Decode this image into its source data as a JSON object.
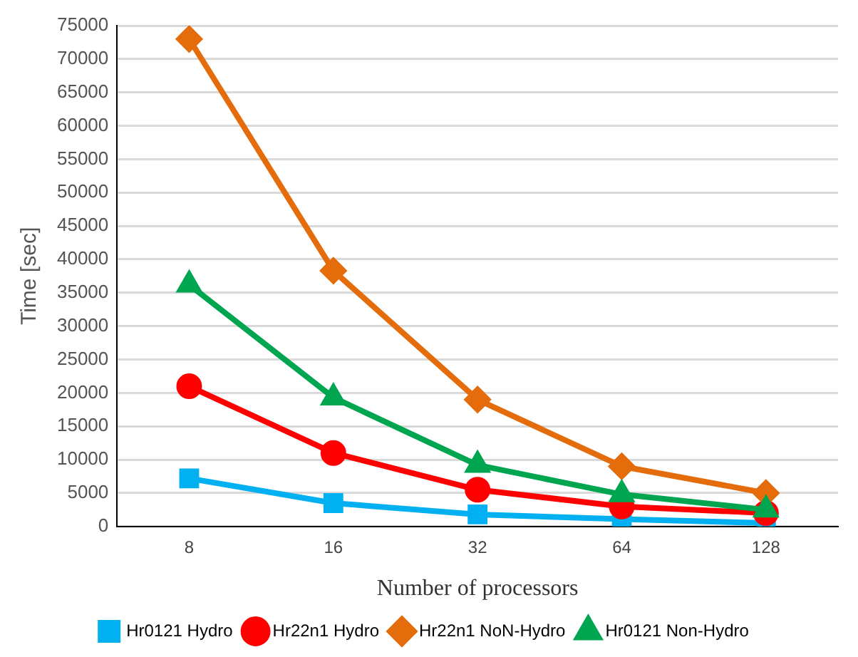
{
  "chart_data": {
    "type": "line",
    "xlabel": "Number of processors",
    "ylabel": "Time [sec]",
    "categories": [
      "8",
      "16",
      "32",
      "64",
      "128"
    ],
    "series": [
      {
        "name": "Hr0121 Hydro",
        "color": "#00b0f0",
        "marker": "square",
        "values": [
          7200,
          3500,
          1800,
          1100,
          500
        ]
      },
      {
        "name": "Hr22n1 Hydro",
        "color": "#ff0000",
        "marker": "circle",
        "values": [
          21000,
          11000,
          5500,
          3000,
          2000
        ]
      },
      {
        "name": "Hr22n1 NoN-Hydro",
        "color": "#e46c0a",
        "marker": "diamond",
        "values": [
          73000,
          38300,
          19000,
          9000,
          5000
        ]
      },
      {
        "name": "Hr0121 Non-Hydro",
        "color": "#00a550",
        "marker": "triangle",
        "values": [
          36200,
          19300,
          9200,
          4800,
          2500
        ]
      }
    ],
    "ylim": [
      0,
      75000
    ],
    "yticks": [
      0,
      5000,
      10000,
      15000,
      20000,
      25000,
      30000,
      35000,
      40000,
      45000,
      50000,
      55000,
      60000,
      65000,
      70000,
      75000
    ],
    "grid": "y",
    "legend": "bottom"
  }
}
